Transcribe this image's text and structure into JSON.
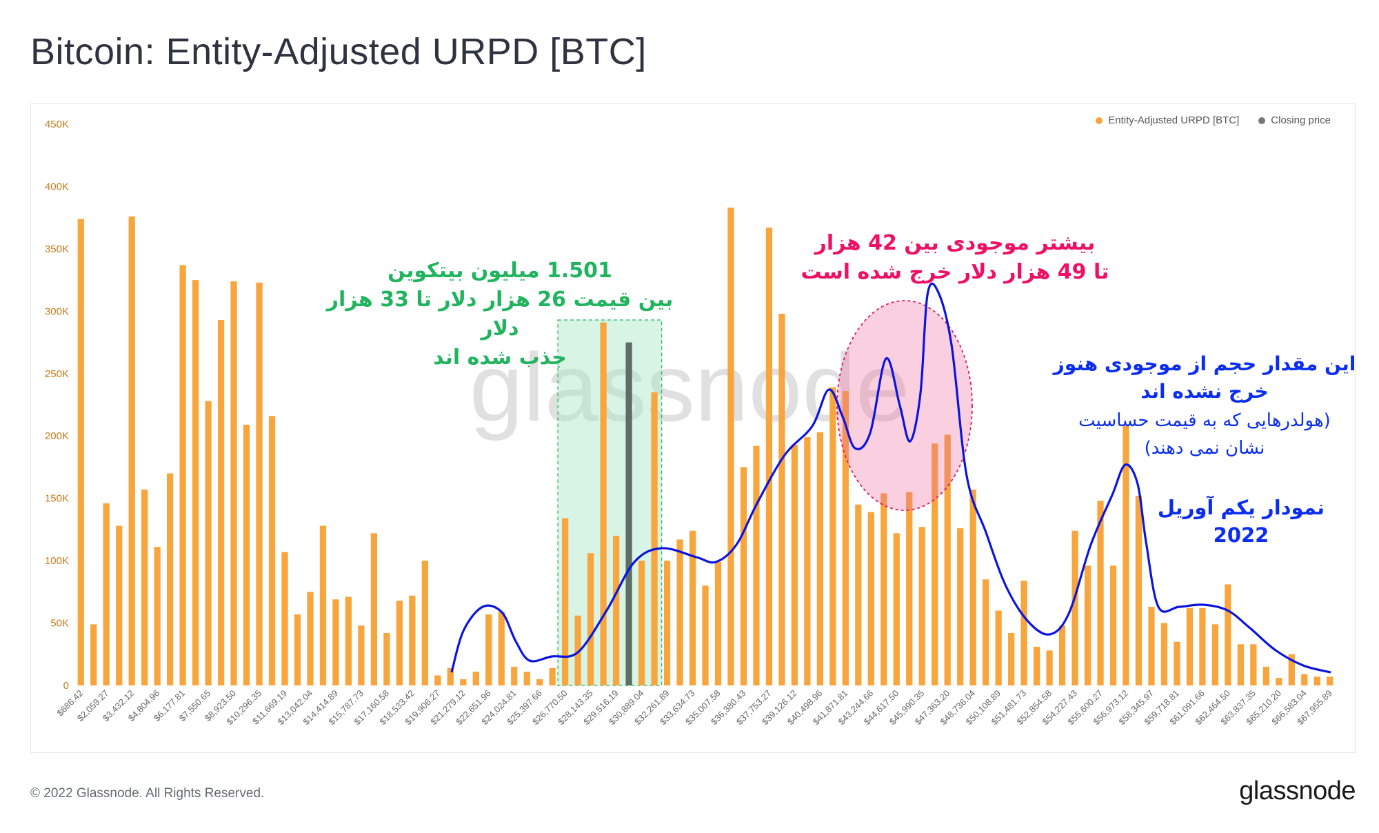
{
  "title": "Bitcoin: Entity-Adjusted URPD [BTC]",
  "footer": "© 2022 Glassnode. All Rights Reserved.",
  "brand": "glassnode",
  "watermark": "glassnode",
  "legend": [
    {
      "label": "Entity-Adjusted URPD [BTC]",
      "color": "#f7931a"
    },
    {
      "label": "Closing price",
      "color": "#777777"
    }
  ],
  "annotations": {
    "green": [
      "1.501  میلیون بیتکوین",
      "بین قیمت 26 هزار دلار تا 33 هزار دلار",
      "جذب شده اند"
    ],
    "pink": [
      "بیشتر موجودی بین 42 هزار",
      "تا 49 هزار دلار خرج شده است"
    ],
    "blue": [
      "این مقدار حجم از موجودی هنوز",
      "خرج نشده اند"
    ],
    "blue_sub": [
      "(هولدرهایی که به قیمت حساسیت",
      "نشان نمی دهند)"
    ],
    "date": [
      "نمودار یکم آوریل",
      "2022"
    ]
  },
  "colors": {
    "bar": "#f7a53c",
    "closing": "#5e6e65",
    "curve": "#0a14e0",
    "green_zone": "#21b35e",
    "pink_zone": "#f06aa0"
  },
  "chart_data": {
    "type": "bar",
    "title": "Bitcoin: Entity-Adjusted URPD [BTC]",
    "xlabel": "",
    "ylabel": "",
    "ylim": [
      0,
      450000
    ],
    "yticks": [
      "0",
      "50K",
      "100K",
      "150K",
      "200K",
      "250K",
      "300K",
      "350K",
      "400K",
      "450K"
    ],
    "ytick_values": [
      0,
      50000,
      100000,
      150000,
      200000,
      250000,
      300000,
      350000,
      400000,
      450000
    ],
    "x_tick_labels": [
      "$686.42",
      "$2,059.27",
      "$3,432.12",
      "$4,804.96",
      "$6,177.81",
      "$7,550.65",
      "$8,923.50",
      "$10,296.35",
      "$11,669.19",
      "$13,042.04",
      "$14,414.89",
      "$15,787.73",
      "$17,160.58",
      "$18,533.42",
      "$19,906.27",
      "$21,279.12",
      "$22,651.96",
      "$24,024.81",
      "$25,397.66",
      "$26,770.50",
      "$28,143.35",
      "$29,516.19",
      "$30,889.04",
      "$32,261.89",
      "$33,634.73",
      "$35,007.58",
      "$36,380.43",
      "$37,753.27",
      "$39,126.12",
      "$40,498.96",
      "$41,871.81",
      "$43,244.66",
      "$44,617.50",
      "$45,990.35",
      "$47,363.20",
      "$48,736.04",
      "$50,108.89",
      "$51,481.73",
      "$52,854.58",
      "$54,227.43",
      "$55,600.27",
      "$56,973.12",
      "$58,345.97",
      "$59,718.81",
      "$61,091.66",
      "$62,464.50",
      "$63,837.35",
      "$65,210.20",
      "$66,583.04",
      "$67,955.89"
    ],
    "series": [
      {
        "name": "Entity-Adjusted URPD [BTC]",
        "values": [
          374000,
          49000,
          146000,
          128000,
          376000,
          157000,
          111000,
          170000,
          337000,
          325000,
          228000,
          293000,
          324000,
          209000,
          323000,
          216000,
          107000,
          57000,
          75000,
          128000,
          69000,
          71000,
          48000,
          122000,
          42000,
          68000,
          72000,
          100000,
          8000,
          14000,
          5000,
          11000,
          57000,
          59000,
          15000,
          11000,
          5000,
          14000,
          134000,
          56000,
          106000,
          291000,
          120000,
          78000,
          100000,
          235000,
          100000,
          117000,
          124000,
          80000,
          99000,
          383000,
          175000,
          192000,
          367000,
          298000,
          193000,
          199000,
          203000,
          239000,
          236000,
          145000,
          139000,
          154000,
          122000,
          155000,
          127000,
          194000,
          201000,
          126000,
          157000,
          85000,
          60000,
          42000,
          84000,
          31000,
          28000,
          48000,
          124000,
          96000,
          148000,
          96000,
          208000,
          152000,
          63000,
          50000,
          35000,
          62000,
          62000,
          49000,
          81000,
          33000,
          33000,
          15000,
          6000,
          25000,
          9000,
          7000,
          7000
        ]
      },
      {
        "name": "Closing price",
        "values": [
          [
            43,
            275000
          ]
        ]
      }
    ],
    "grid": false,
    "legend_position": "top-right"
  }
}
